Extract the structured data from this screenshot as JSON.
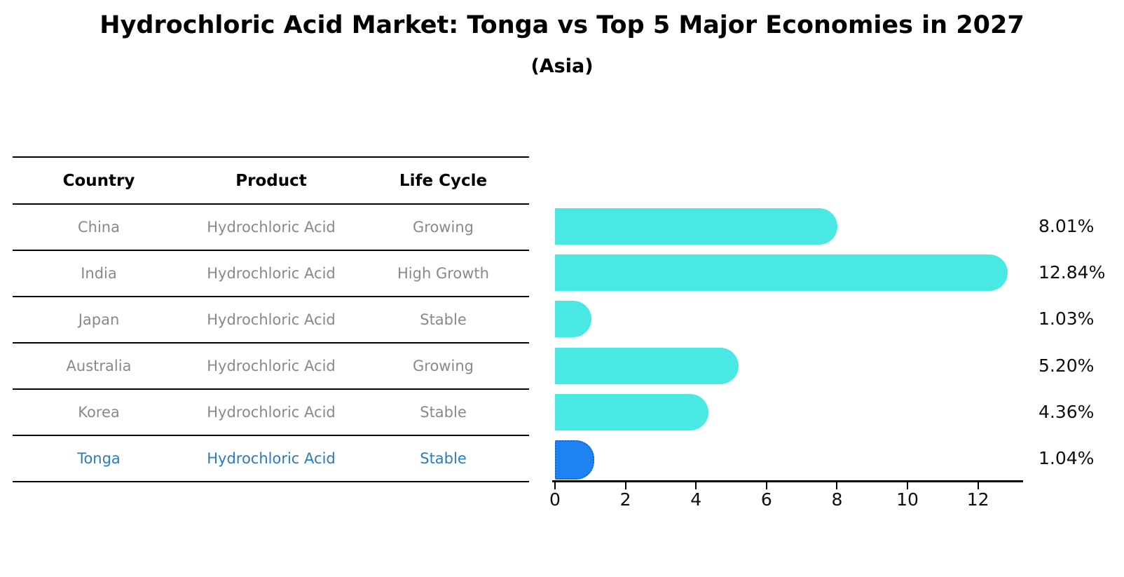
{
  "header": {
    "title": "Hydrochloric Acid Market: Tonga vs Top 5 Major Economies in 2027",
    "subtitle": "(Asia)"
  },
  "table": {
    "columns": [
      "Country",
      "Product",
      "Life Cycle"
    ],
    "rows": [
      {
        "country": "China",
        "product": "Hydrochloric Acid",
        "life_cycle": "Growing",
        "highlight": false
      },
      {
        "country": "India",
        "product": "Hydrochloric Acid",
        "life_cycle": "High Growth",
        "highlight": false
      },
      {
        "country": "Japan",
        "product": "Hydrochloric Acid",
        "life_cycle": "Stable",
        "highlight": false
      },
      {
        "country": "Australia",
        "product": "Hydrochloric Acid",
        "life_cycle": "Growing",
        "highlight": false
      },
      {
        "country": "Korea",
        "product": "Hydrochloric Acid",
        "life_cycle": "Stable",
        "highlight": true
      }
    ],
    "highlight_row": {
      "country": "Tonga",
      "product": "Hydrochloric Acid",
      "life_cycle": "Stable",
      "highlight": true
    }
  },
  "chart_data": {
    "type": "bar",
    "orientation": "horizontal",
    "title": "Hydrochloric Acid Market: Tonga vs Top 5 Major Economies in 2027",
    "subtitle": "(Asia)",
    "categories": [
      "China",
      "India",
      "Japan",
      "Australia",
      "Korea",
      "Tonga"
    ],
    "values": [
      8.01,
      12.84,
      1.03,
      5.2,
      4.36,
      1.04
    ],
    "value_labels": [
      "8.01%",
      "12.84%",
      "1.03%",
      "5.20%",
      "4.36%",
      "1.04%"
    ],
    "highlighted_category": "Tonga",
    "x_ticks": [
      0,
      2,
      4,
      6,
      8,
      10,
      12
    ],
    "xlim": [
      0,
      13.3
    ],
    "grid": false,
    "legend": false,
    "colors": {
      "bar_default": "#4ae8e3",
      "bar_highlight": "#1e82f0",
      "bar_highlight_border": "#1565d8",
      "axis": "#000000",
      "tick_label": "#0d0d0d",
      "value_label": "#0d0d0d",
      "table_text": "#898989",
      "table_header_text": "#000000",
      "highlight_text": "#2b7ac4"
    }
  }
}
